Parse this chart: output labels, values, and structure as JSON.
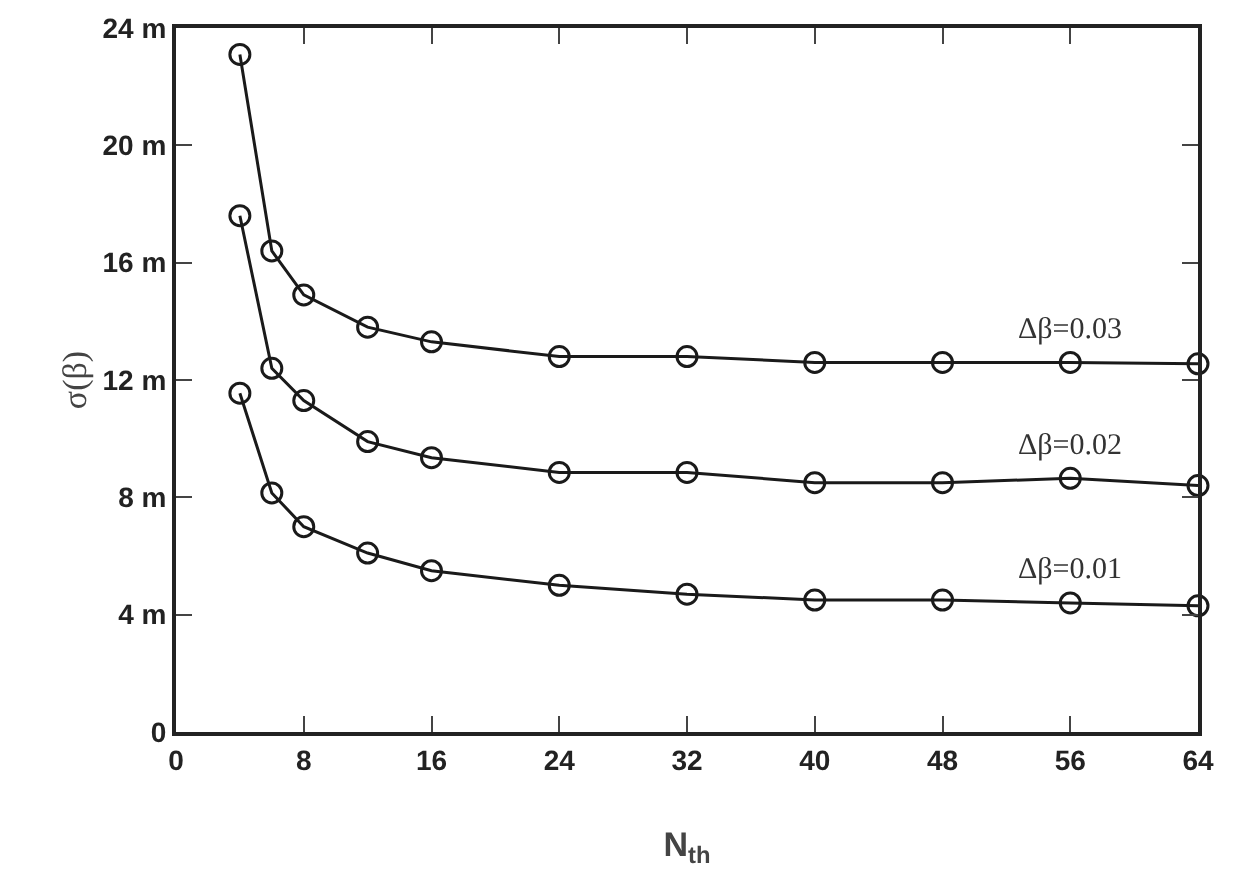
{
  "chart_data": {
    "type": "line",
    "xlabel": "N$_{th}$",
    "ylabel": "σ(β)",
    "x": [
      4,
      6,
      8,
      12,
      16,
      24,
      32,
      40,
      48,
      56,
      64
    ],
    "series": [
      {
        "name": "Δβ=0.03",
        "color": "#1a1a1a",
        "values": [
          23.1,
          16.4,
          14.9,
          13.8,
          13.3,
          12.8,
          12.8,
          12.6,
          12.6,
          12.6,
          12.55
        ]
      },
      {
        "name": "Δβ=0.02",
        "color": "#1a1a1a",
        "values": [
          17.6,
          12.4,
          11.3,
          9.9,
          9.35,
          8.85,
          8.85,
          8.5,
          8.5,
          8.65,
          8.4
        ]
      },
      {
        "name": "Δβ=0.01",
        "color": "#1a1a1a",
        "values": [
          11.55,
          8.15,
          7.0,
          6.1,
          5.5,
          5.0,
          4.7,
          4.5,
          4.5,
          4.4,
          4.3
        ]
      }
    ],
    "xlim": [
      0,
      64
    ],
    "xticks": [
      0,
      8,
      16,
      24,
      32,
      40,
      48,
      56,
      64
    ],
    "ylim": [
      0,
      24
    ],
    "yticks": [
      0,
      {
        "value": 4,
        "label": "4 m"
      },
      {
        "value": 8,
        "label": "8 m"
      },
      {
        "value": 12,
        "label": "12 m"
      },
      {
        "value": 16,
        "label": "16 m"
      },
      {
        "value": 20,
        "label": "20 m"
      },
      {
        "value": 24,
        "label": "24 m"
      }
    ],
    "marker": "circle",
    "line_style": "solid",
    "grid": false,
    "legend": false
  }
}
